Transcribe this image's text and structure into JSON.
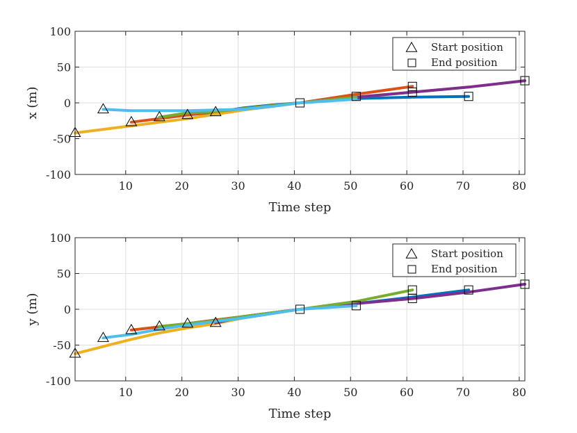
{
  "chart_data": [
    {
      "type": "line",
      "title": "",
      "xlabel": "Time step",
      "ylabel": "x (m)",
      "xlim": [
        1,
        81
      ],
      "ylim": [
        -100,
        100
      ],
      "xticks": [
        10,
        20,
        30,
        40,
        50,
        60,
        70,
        80
      ],
      "yticks": [
        -100,
        -50,
        0,
        50,
        100
      ],
      "grid": true,
      "legend_position": "top-right",
      "legend": [
        {
          "label": "Start position",
          "marker": "triangle"
        },
        {
          "label": "End position",
          "marker": "square"
        }
      ],
      "series": [
        {
          "name": "series-blue",
          "color": "#0072BD",
          "x": [
            21,
            26,
            31,
            36,
            41,
            51,
            61,
            71
          ],
          "y": [
            -17,
            -13,
            -7,
            -3,
            0,
            6,
            8,
            9
          ]
        },
        {
          "name": "series-orange",
          "color": "#D95319",
          "x": [
            11,
            21,
            31,
            41,
            51,
            61
          ],
          "y": [
            -27,
            -17,
            -8,
            0,
            12,
            23
          ]
        },
        {
          "name": "series-yellow",
          "color": "#EDB120",
          "x": [
            1,
            11,
            21,
            31,
            41,
            51,
            61,
            71,
            81
          ],
          "y": [
            -42,
            -32,
            -22,
            -10,
            0,
            8,
            15,
            22,
            31
          ]
        },
        {
          "name": "series-purple",
          "color": "#7E2F8E",
          "x": [
            26,
            41,
            51,
            61,
            71,
            81
          ],
          "y": [
            -12,
            0,
            8,
            15,
            22,
            31
          ]
        },
        {
          "name": "series-green",
          "color": "#77AC30",
          "x": [
            16,
            21,
            26,
            31,
            41,
            51
          ],
          "y": [
            -20,
            -14,
            -12,
            -8,
            0,
            8
          ]
        },
        {
          "name": "series-cyan",
          "color": "#4DBEEE",
          "x": [
            6,
            11,
            21,
            31,
            36,
            41,
            51
          ],
          "y": [
            -9,
            -11,
            -11,
            -9,
            -5,
            0,
            5
          ]
        }
      ],
      "start_markers": {
        "x": [
          1,
          6,
          11,
          16,
          21,
          26
        ],
        "y": [
          -42,
          -9,
          -27,
          -20,
          -17,
          -13
        ]
      },
      "end_markers": {
        "x": [
          41,
          51,
          61,
          61,
          71,
          81
        ],
        "y": [
          0,
          9,
          23,
          15,
          9,
          31
        ]
      }
    },
    {
      "type": "line",
      "title": "",
      "xlabel": "Time step",
      "ylabel": "y (m)",
      "xlim": [
        1,
        81
      ],
      "ylim": [
        -100,
        100
      ],
      "xticks": [
        10,
        20,
        30,
        40,
        50,
        60,
        70,
        80
      ],
      "yticks": [
        -100,
        -50,
        0,
        50,
        100
      ],
      "grid": true,
      "legend_position": "top-right",
      "legend": [
        {
          "label": "Start position",
          "marker": "triangle"
        },
        {
          "label": "End position",
          "marker": "square"
        }
      ],
      "series": [
        {
          "name": "series-blue",
          "color": "#0072BD",
          "x": [
            21,
            31,
            41,
            51,
            61,
            71
          ],
          "y": [
            -20,
            -10,
            0,
            8,
            17,
            27
          ]
        },
        {
          "name": "series-orange",
          "color": "#D95319",
          "x": [
            11,
            21,
            31,
            41
          ],
          "y": [
            -29,
            -20,
            -10,
            0
          ]
        },
        {
          "name": "series-yellow",
          "color": "#EDB120",
          "x": [
            1,
            6,
            11,
            16,
            21,
            26,
            31,
            36,
            41
          ],
          "y": [
            -62,
            -52,
            -42,
            -33,
            -26,
            -20,
            -12,
            -6,
            0
          ]
        },
        {
          "name": "series-purple",
          "color": "#7E2F8E",
          "x": [
            26,
            31,
            41,
            51,
            61,
            71,
            81
          ],
          "y": [
            -19,
            -10,
            0,
            8,
            15,
            24,
            35
          ]
        },
        {
          "name": "series-green",
          "color": "#77AC30",
          "x": [
            16,
            21,
            26,
            31,
            41,
            51,
            61
          ],
          "y": [
            -24,
            -20,
            -16,
            -10,
            0,
            11,
            27
          ]
        },
        {
          "name": "series-cyan",
          "color": "#4DBEEE",
          "x": [
            6,
            11,
            16,
            21,
            31,
            41,
            51
          ],
          "y": [
            -40,
            -35,
            -28,
            -22,
            -12,
            0,
            5
          ]
        }
      ],
      "start_markers": {
        "x": [
          1,
          6,
          11,
          16,
          21,
          26
        ],
        "y": [
          -62,
          -40,
          -29,
          -24,
          -20,
          -19
        ]
      },
      "end_markers": {
        "x": [
          41,
          51,
          61,
          61,
          71,
          81
        ],
        "y": [
          0,
          5,
          27,
          15,
          27,
          35
        ]
      }
    }
  ]
}
